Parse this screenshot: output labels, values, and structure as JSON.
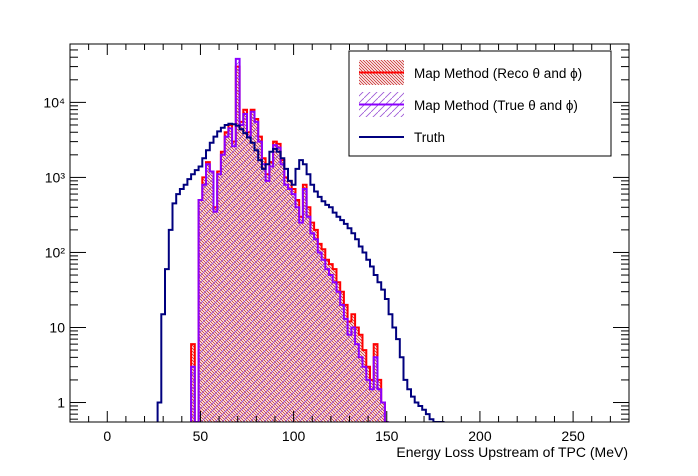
{
  "chart_data": {
    "type": "histogram",
    "xlabel": "Energy Loss Upstream of TPC (MeV)",
    "ylabel": "",
    "xlim": [
      -20,
      280
    ],
    "ylim": [
      0.55,
      60000
    ],
    "y_scale": "log",
    "x_ticks": [
      0,
      50,
      100,
      150,
      200,
      250
    ],
    "x_tick_labels": [
      "0",
      "50",
      "100",
      "150",
      "200",
      "250"
    ],
    "y_ticks": [
      1,
      10,
      100,
      1000,
      10000
    ],
    "y_tick_labels": [
      "1",
      "10",
      "10²",
      "10³",
      "10⁴"
    ],
    "legend": {
      "position": "top-right",
      "entries": [
        {
          "label": "Map Method (Reco θ and ϕ)",
          "color": "#ff0000",
          "style": "hatched-fill-line"
        },
        {
          "label": "Map Method (True θ and ϕ)",
          "color": "#8b00ff",
          "style": "hatched-fill-line"
        },
        {
          "label": "Truth",
          "color": "#00007f",
          "style": "line"
        }
      ]
    },
    "series": [
      {
        "name": "Truth",
        "color": "#00007f",
        "bin_width": 1,
        "x": [
          28,
          30,
          32,
          34,
          36,
          38,
          40,
          42,
          44,
          46,
          48,
          50,
          52,
          54,
          56,
          58,
          60,
          62,
          64,
          66,
          68,
          70,
          72,
          74,
          76,
          78,
          80,
          82,
          84,
          86,
          88,
          90,
          92,
          94,
          96,
          98,
          100,
          102,
          104,
          106,
          108,
          110,
          112,
          114,
          116,
          118,
          120,
          122,
          124,
          126,
          128,
          130,
          132,
          134,
          136,
          138,
          140,
          142,
          144,
          146,
          148,
          150,
          152,
          154,
          156,
          158,
          160,
          162,
          164,
          166,
          168,
          170,
          172,
          174,
          176,
          178,
          180
        ],
        "values": [
          1,
          15,
          60,
          200,
          450,
          600,
          700,
          800,
          950,
          1100,
          1250,
          1400,
          1800,
          2300,
          2900,
          3500,
          4100,
          4600,
          5000,
          5200,
          5100,
          4900,
          4400,
          3900,
          3400,
          2900,
          2300,
          1700,
          1300,
          1500,
          2200,
          2400,
          2200,
          1800,
          1300,
          900,
          800,
          1300,
          1700,
          1500,
          1100,
          800,
          650,
          550,
          480,
          430,
          400,
          340,
          300,
          270,
          240,
          210,
          180,
          150,
          120,
          100,
          80,
          65,
          50,
          40,
          32,
          24,
          15,
          10,
          7,
          4,
          2,
          1.5,
          1.2,
          1,
          0.9,
          0.8,
          0.7,
          0.6,
          0,
          0,
          0
        ]
      },
      {
        "name": "Map Method (Reco θ and ϕ)",
        "color": "#ff0000",
        "bin_width": 1,
        "x": [
          46,
          48,
          50,
          52,
          54,
          56,
          58,
          60,
          62,
          64,
          66,
          68,
          70,
          72,
          74,
          76,
          78,
          80,
          82,
          84,
          86,
          88,
          90,
          92,
          94,
          96,
          98,
          100,
          102,
          104,
          106,
          108,
          110,
          112,
          114,
          116,
          118,
          120,
          122,
          124,
          126,
          128,
          130,
          132,
          134,
          136,
          138,
          140,
          142,
          144,
          146,
          148,
          150
        ],
        "values": [
          6,
          0,
          500,
          1000,
          1600,
          1200,
          400,
          1200,
          2200,
          4000,
          5000,
          3000,
          30000,
          5500,
          8000,
          4000,
          8000,
          6000,
          3500,
          1800,
          1100,
          1600,
          3000,
          2800,
          1700,
          1000,
          900,
          700,
          500,
          300,
          800,
          400,
          250,
          200,
          130,
          110,
          80,
          70,
          60,
          40,
          30,
          20,
          12,
          15,
          10,
          8,
          5,
          3,
          2,
          6,
          2,
          1,
          0
        ]
      },
      {
        "name": "Map Method (True θ and ϕ)",
        "color": "#8b00ff",
        "bin_width": 1,
        "x": [
          46,
          48,
          50,
          52,
          54,
          56,
          58,
          60,
          62,
          64,
          66,
          68,
          70,
          72,
          74,
          76,
          78,
          80,
          82,
          84,
          86,
          88,
          90,
          92,
          94,
          96,
          98,
          100,
          102,
          104,
          106,
          108,
          110,
          112,
          114,
          116,
          118,
          120,
          122,
          124,
          126,
          128,
          130,
          132,
          134,
          136,
          138,
          140,
          142,
          144,
          146,
          148,
          150
        ],
        "values": [
          3,
          0,
          500,
          800,
          1500,
          1200,
          350,
          1100,
          2000,
          3500,
          4500,
          2600,
          38000,
          5000,
          7000,
          3500,
          7500,
          5500,
          3000,
          1500,
          900,
          1400,
          2700,
          2500,
          1500,
          800,
          700,
          600,
          400,
          250,
          700,
          300,
          180,
          150,
          100,
          80,
          60,
          50,
          40,
          30,
          20,
          13,
          8,
          10,
          6,
          4,
          3,
          2,
          1.5,
          4,
          1.5,
          1,
          0
        ]
      }
    ]
  }
}
